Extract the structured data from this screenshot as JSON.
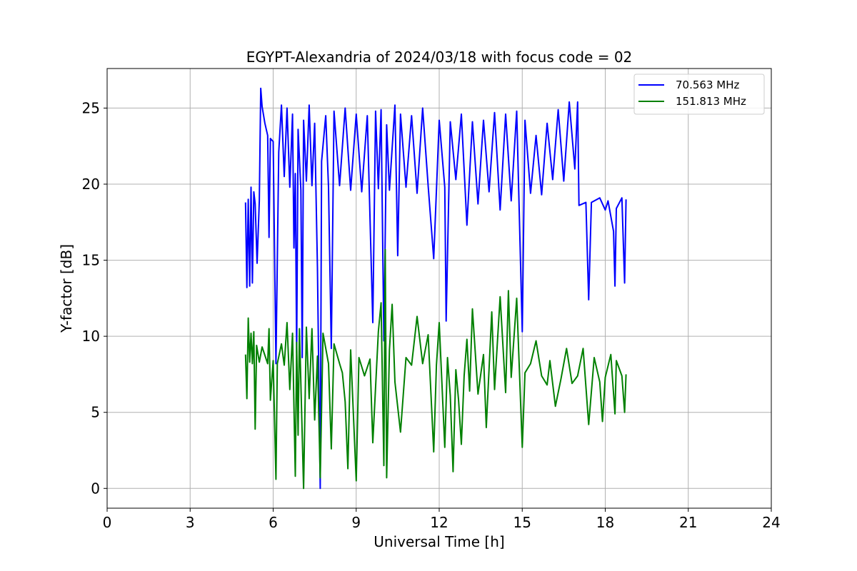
{
  "chart_data": {
    "type": "line",
    "title": "EGYPT-Alexandria of 2024/03/18 with focus code = 02",
    "xlabel": "Universal Time [h]",
    "ylabel": "Y-factor [dB]",
    "xlim": [
      0,
      24
    ],
    "ylim": [
      -1.3,
      27.6
    ],
    "xticks": [
      0,
      3,
      6,
      9,
      12,
      15,
      18,
      21,
      24
    ],
    "yticks": [
      0,
      5,
      10,
      15,
      20,
      25
    ],
    "grid": true,
    "legend_position": "top-right",
    "series": [
      {
        "name": "70.563 MHz",
        "color": "#0000ff",
        "points": [
          [
            5.0,
            18.8
          ],
          [
            5.05,
            13.2
          ],
          [
            5.1,
            19.0
          ],
          [
            5.15,
            13.3
          ],
          [
            5.2,
            19.8
          ],
          [
            5.25,
            13.5
          ],
          [
            5.3,
            19.5
          ],
          [
            5.35,
            18.7
          ],
          [
            5.42,
            14.8
          ],
          [
            5.5,
            18.9
          ],
          [
            5.55,
            26.3
          ],
          [
            5.6,
            25.1
          ],
          [
            5.7,
            24.0
          ],
          [
            5.8,
            23.2
          ],
          [
            5.85,
            16.5
          ],
          [
            5.9,
            23.0
          ],
          [
            6.0,
            22.8
          ],
          [
            6.1,
            8.2
          ],
          [
            6.2,
            22.1
          ],
          [
            6.3,
            25.2
          ],
          [
            6.4,
            20.5
          ],
          [
            6.5,
            25.0
          ],
          [
            6.6,
            19.8
          ],
          [
            6.7,
            24.6
          ],
          [
            6.75,
            15.8
          ],
          [
            6.8,
            20.7
          ],
          [
            6.85,
            8.9
          ],
          [
            6.9,
            23.6
          ],
          [
            7.0,
            19.6
          ],
          [
            7.05,
            8.6
          ],
          [
            7.1,
            24.2
          ],
          [
            7.2,
            20.2
          ],
          [
            7.3,
            25.2
          ],
          [
            7.4,
            19.9
          ],
          [
            7.5,
            24.0
          ],
          [
            7.6,
            14.5
          ],
          [
            7.7,
            0.0
          ],
          [
            7.75,
            21.5
          ],
          [
            7.9,
            24.5
          ],
          [
            8.0,
            19.8
          ],
          [
            8.1,
            9.2
          ],
          [
            8.2,
            24.8
          ],
          [
            8.4,
            19.9
          ],
          [
            8.6,
            25.0
          ],
          [
            8.8,
            19.6
          ],
          [
            9.0,
            24.6
          ],
          [
            9.2,
            19.5
          ],
          [
            9.4,
            24.5
          ],
          [
            9.6,
            10.9
          ],
          [
            9.7,
            24.8
          ],
          [
            9.8,
            19.7
          ],
          [
            9.9,
            24.9
          ],
          [
            10.0,
            9.7
          ],
          [
            10.1,
            23.9
          ],
          [
            10.2,
            19.6
          ],
          [
            10.4,
            25.2
          ],
          [
            10.5,
            15.3
          ],
          [
            10.6,
            24.6
          ],
          [
            10.8,
            19.8
          ],
          [
            11.0,
            24.5
          ],
          [
            11.2,
            19.4
          ],
          [
            11.4,
            25.0
          ],
          [
            11.6,
            19.9
          ],
          [
            11.8,
            15.1
          ],
          [
            12.0,
            24.2
          ],
          [
            12.2,
            19.8
          ],
          [
            12.25,
            11.0
          ],
          [
            12.4,
            24.1
          ],
          [
            12.6,
            20.3
          ],
          [
            12.8,
            24.6
          ],
          [
            13.0,
            17.3
          ],
          [
            13.2,
            24.1
          ],
          [
            13.4,
            18.7
          ],
          [
            13.6,
            24.2
          ],
          [
            13.8,
            19.5
          ],
          [
            14.0,
            24.7
          ],
          [
            14.2,
            18.3
          ],
          [
            14.4,
            24.6
          ],
          [
            14.6,
            18.9
          ],
          [
            14.8,
            24.8
          ],
          [
            15.0,
            10.3
          ],
          [
            15.1,
            24.2
          ],
          [
            15.3,
            19.4
          ],
          [
            15.5,
            23.2
          ],
          [
            15.7,
            19.3
          ],
          [
            15.9,
            24.0
          ],
          [
            16.1,
            20.3
          ],
          [
            16.3,
            24.9
          ],
          [
            16.5,
            20.2
          ],
          [
            16.7,
            25.4
          ],
          [
            16.9,
            21.0
          ],
          [
            17.0,
            25.4
          ],
          [
            17.05,
            18.6
          ],
          [
            17.3,
            18.8
          ],
          [
            17.4,
            12.4
          ],
          [
            17.5,
            18.8
          ],
          [
            17.8,
            19.1
          ],
          [
            18.0,
            18.3
          ],
          [
            18.1,
            18.9
          ],
          [
            18.3,
            16.9
          ],
          [
            18.35,
            13.3
          ],
          [
            18.4,
            18.4
          ],
          [
            18.6,
            19.1
          ],
          [
            18.7,
            13.5
          ],
          [
            18.75,
            19.0
          ]
        ]
      },
      {
        "name": "151.813 MHz",
        "color": "#008000",
        "points": [
          [
            5.0,
            8.8
          ],
          [
            5.05,
            5.9
          ],
          [
            5.1,
            11.2
          ],
          [
            5.15,
            8.3
          ],
          [
            5.2,
            10.2
          ],
          [
            5.25,
            8.2
          ],
          [
            5.3,
            10.3
          ],
          [
            5.35,
            3.9
          ],
          [
            5.4,
            9.4
          ],
          [
            5.5,
            8.3
          ],
          [
            5.6,
            9.3
          ],
          [
            5.8,
            8.2
          ],
          [
            5.85,
            10.5
          ],
          [
            5.9,
            5.8
          ],
          [
            6.0,
            8.4
          ],
          [
            6.1,
            0.6
          ],
          [
            6.15,
            8.2
          ],
          [
            6.3,
            9.5
          ],
          [
            6.4,
            8.1
          ],
          [
            6.5,
            10.9
          ],
          [
            6.6,
            6.5
          ],
          [
            6.7,
            10.2
          ],
          [
            6.8,
            0.8
          ],
          [
            6.85,
            9.6
          ],
          [
            6.9,
            3.5
          ],
          [
            6.95,
            10.5
          ],
          [
            7.1,
            0.0
          ],
          [
            7.2,
            10.6
          ],
          [
            7.3,
            5.9
          ],
          [
            7.4,
            10.5
          ],
          [
            7.5,
            4.5
          ],
          [
            7.6,
            8.7
          ],
          [
            7.7,
            0.7
          ],
          [
            7.8,
            10.2
          ],
          [
            8.0,
            8.2
          ],
          [
            8.1,
            2.6
          ],
          [
            8.2,
            9.5
          ],
          [
            8.4,
            8.2
          ],
          [
            8.5,
            7.6
          ],
          [
            8.6,
            5.7
          ],
          [
            8.7,
            1.3
          ],
          [
            8.8,
            9.1
          ],
          [
            9.0,
            0.5
          ],
          [
            9.1,
            8.6
          ],
          [
            9.3,
            7.4
          ],
          [
            9.5,
            8.5
          ],
          [
            9.6,
            3.0
          ],
          [
            9.8,
            10.3
          ],
          [
            9.9,
            12.2
          ],
          [
            10.0,
            1.5
          ],
          [
            10.05,
            15.7
          ],
          [
            10.1,
            0.7
          ],
          [
            10.2,
            9.1
          ],
          [
            10.3,
            12.1
          ],
          [
            10.4,
            7.0
          ],
          [
            10.6,
            3.7
          ],
          [
            10.8,
            8.6
          ],
          [
            11.0,
            8.1
          ],
          [
            11.2,
            11.3
          ],
          [
            11.4,
            8.2
          ],
          [
            11.6,
            10.1
          ],
          [
            11.8,
            2.4
          ],
          [
            11.9,
            8.1
          ],
          [
            12.0,
            10.9
          ],
          [
            12.2,
            2.7
          ],
          [
            12.3,
            8.6
          ],
          [
            12.4,
            6.1
          ],
          [
            12.5,
            1.1
          ],
          [
            12.6,
            7.8
          ],
          [
            12.7,
            5.8
          ],
          [
            12.8,
            2.9
          ],
          [
            12.9,
            7.4
          ],
          [
            13.0,
            9.8
          ],
          [
            13.1,
            6.4
          ],
          [
            13.2,
            11.8
          ],
          [
            13.4,
            6.2
          ],
          [
            13.6,
            8.8
          ],
          [
            13.7,
            4.0
          ],
          [
            13.9,
            11.6
          ],
          [
            14.0,
            6.5
          ],
          [
            14.2,
            12.6
          ],
          [
            14.4,
            6.3
          ],
          [
            14.5,
            13.0
          ],
          [
            14.6,
            7.3
          ],
          [
            14.8,
            12.5
          ],
          [
            15.0,
            2.7
          ],
          [
            15.1,
            7.6
          ],
          [
            15.3,
            8.2
          ],
          [
            15.5,
            9.7
          ],
          [
            15.7,
            7.4
          ],
          [
            15.9,
            6.8
          ],
          [
            16.0,
            8.4
          ],
          [
            16.2,
            5.4
          ],
          [
            16.4,
            7.2
          ],
          [
            16.6,
            9.2
          ],
          [
            16.8,
            6.9
          ],
          [
            17.0,
            7.4
          ],
          [
            17.2,
            9.2
          ],
          [
            17.4,
            4.2
          ],
          [
            17.6,
            8.6
          ],
          [
            17.8,
            7.0
          ],
          [
            17.9,
            4.4
          ],
          [
            18.0,
            7.3
          ],
          [
            18.2,
            8.8
          ],
          [
            18.35,
            4.9
          ],
          [
            18.4,
            8.4
          ],
          [
            18.6,
            7.4
          ],
          [
            18.7,
            5.0
          ],
          [
            18.75,
            7.5
          ]
        ]
      }
    ]
  }
}
